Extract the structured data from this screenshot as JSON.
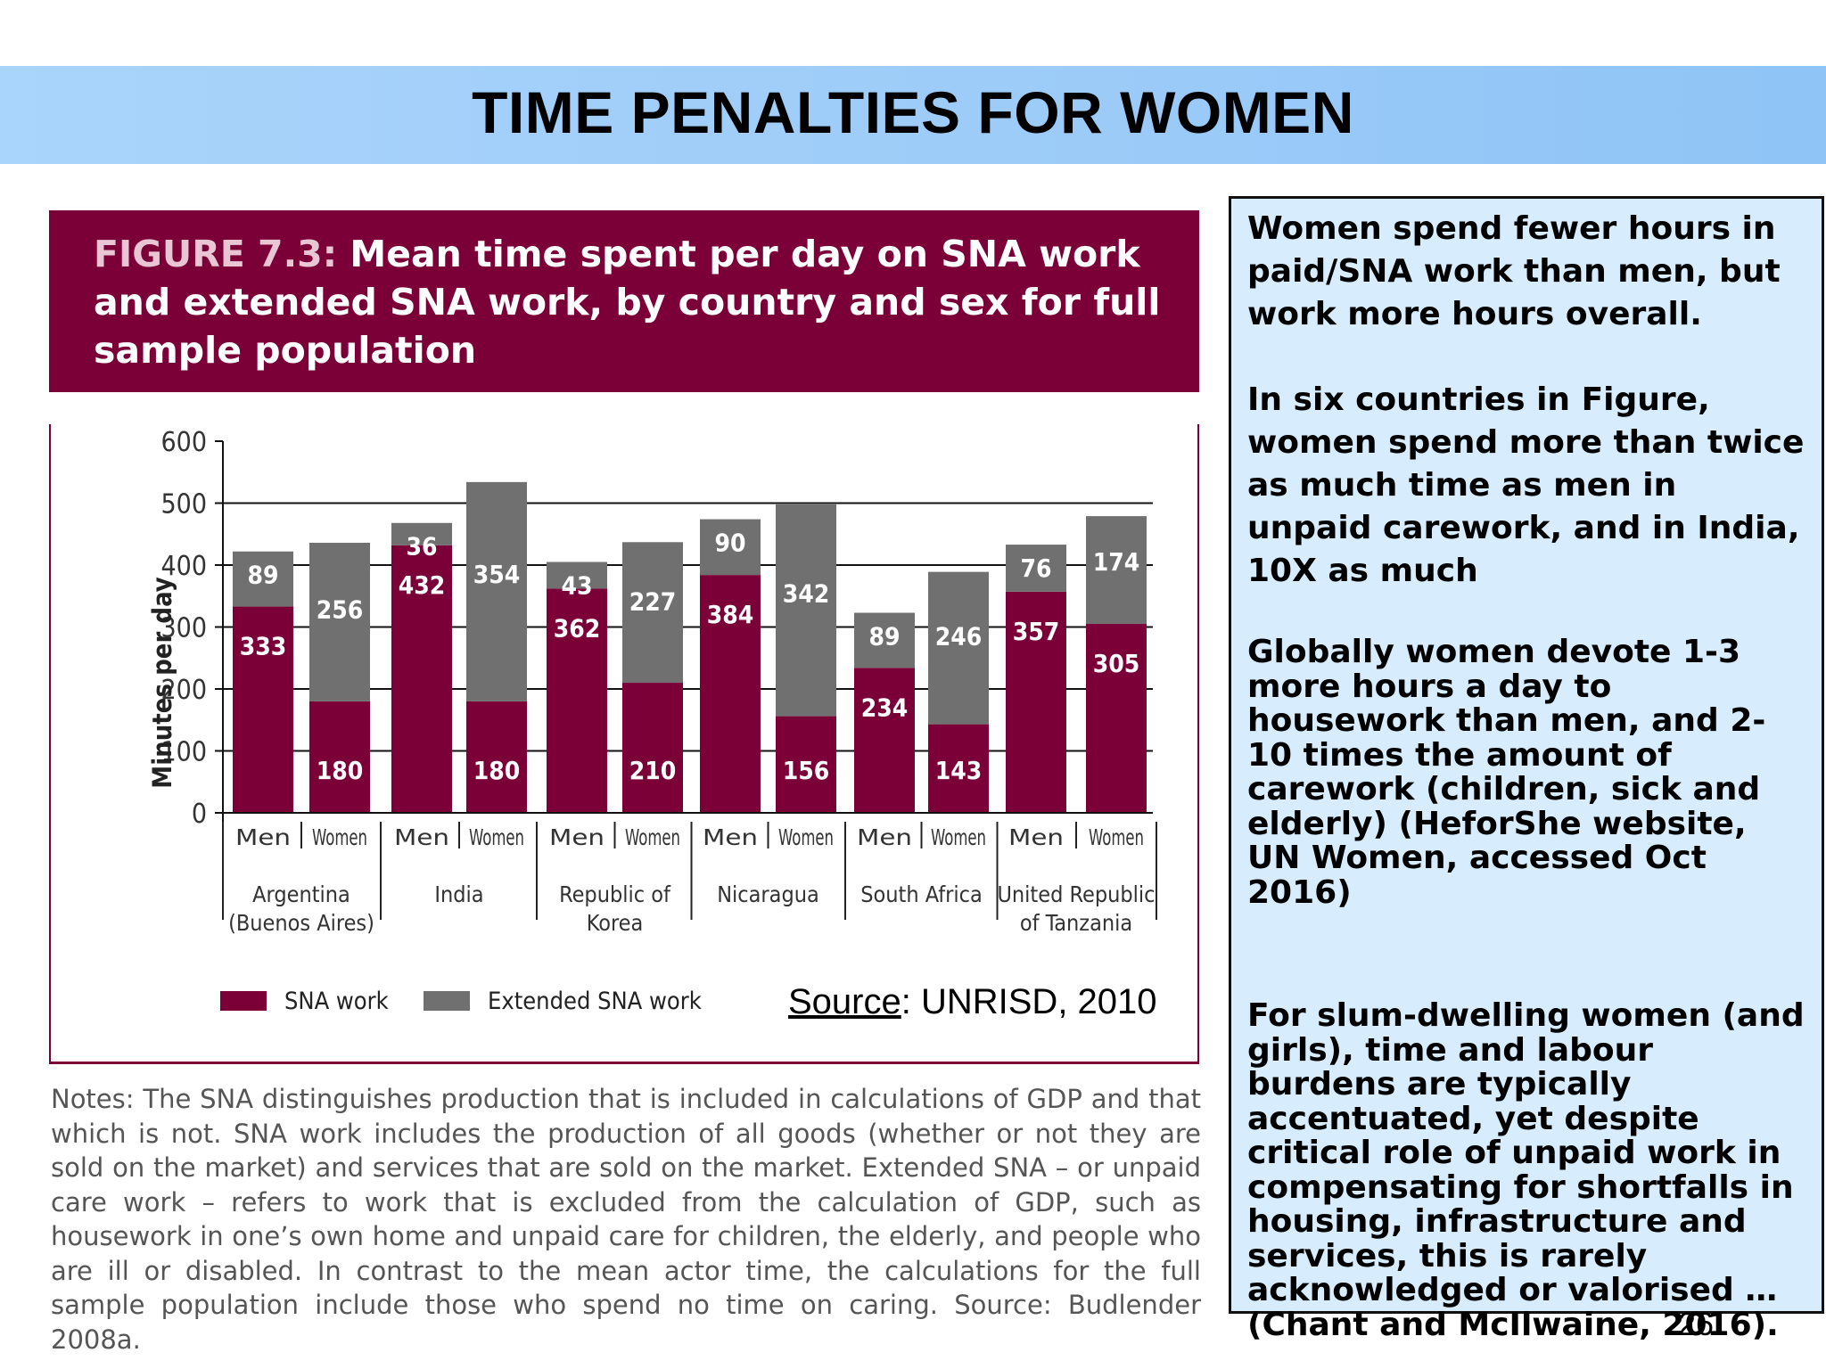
{
  "slide": {
    "title": "TIME PENALTIES FOR WOMEN",
    "page_number": "26"
  },
  "figure": {
    "label": "FIGURE 7.3:",
    "title_line1": "Mean time spent per day on SNA work",
    "title_line2": "and extended SNA work, by country and sex for full",
    "title_line3": "sample population",
    "header_color": "#7b0038"
  },
  "source": {
    "key": "Source",
    "text": ": UNRISD, 2010"
  },
  "notes": "Notes: The SNA distinguishes production that is included in calculations of GDP and that which is not. SNA work includes the production of all goods (whether or not they are sold on the market) and services that are sold on the market. Extended SNA – or unpaid care work – refers to work that is excluded from the calculation of GDP, such as housework in one’s own home and unpaid care for children, the elderly, and people who are ill or disabled. In contrast to the mean actor time, the calculations for the full sample population include those who spend no time on caring. Source: Budlender 2008a.",
  "side_panel": {
    "p1": "Women spend fewer hours in paid/SNA work than men, but work more hours overall.",
    "p2": "In six countries in Figure, women spend more than twice as much time as men in unpaid carework, and in India, 10X as much",
    "p3": "Globally women devote 1-3 more hours a day to housework than men, and 2-10 times the amount of carework (children, sick and elderly) (HeforShe website, UN Women, accessed Oct 2016)",
    "p4": "For slum-dwelling women (and girls), time and labour burdens are typically accentuated, yet despite critical role of unpaid work in compensating for shortfalls in housing, infrastructure and services, this is rarely acknowledged or valorised …(Chant and McIlwaine, 2016)."
  },
  "chart_data": {
    "type": "bar",
    "stacked": true,
    "ylabel": "Minutes per day",
    "ylim": [
      0,
      600
    ],
    "yticks": [
      "0",
      "100",
      "200",
      "300",
      "400",
      "500",
      "600"
    ],
    "grid": "horizontal at 100, 200, 300, 400, 500",
    "legend_position": "bottom-left",
    "countries": [
      {
        "name": [
          "Argentina",
          "(Buenos Aires)"
        ]
      },
      {
        "name": [
          "India"
        ]
      },
      {
        "name": [
          "Republic of",
          "Korea"
        ]
      },
      {
        "name": [
          "Nicaragua"
        ]
      },
      {
        "name": [
          "South Africa"
        ]
      },
      {
        "name": [
          "United Republic",
          "of Tanzania"
        ]
      }
    ],
    "categories": [
      "Men",
      "Women",
      "Men",
      "Women",
      "Men",
      "Women",
      "Men",
      "Women",
      "Men",
      "Women",
      "Men",
      "Women"
    ],
    "series": [
      {
        "name": "SNA work",
        "color": "#7b0038",
        "values": [
          333,
          180,
          432,
          180,
          362,
          210,
          384,
          156,
          234,
          143,
          357,
          305
        ]
      },
      {
        "name": "Extended SNA work",
        "color": "#707070",
        "values": [
          89,
          256,
          36,
          354,
          43,
          227,
          90,
          342,
          89,
          246,
          76,
          174
        ]
      }
    ]
  }
}
